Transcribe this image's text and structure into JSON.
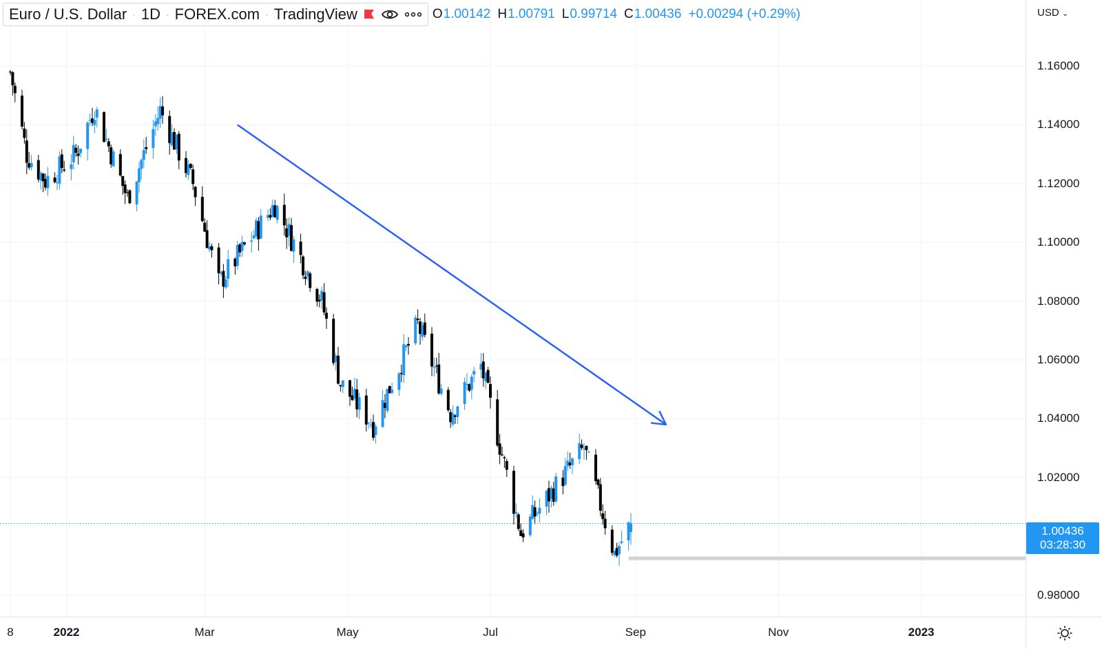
{
  "legend": {
    "symbol": "Euro / U.S. Dollar",
    "interval": "1D",
    "exchange": "FOREX.com",
    "platform": "TradingView",
    "flag_icon": "red-flag-icon",
    "visibility_icon": "eye-icon",
    "more_icon": "more-dots-icon",
    "ohlc": {
      "open_key": "O",
      "open": "1.00142",
      "high_key": "H",
      "high": "1.00791",
      "low_key": "L",
      "low": "0.99714",
      "close_key": "C",
      "close": "1.00436",
      "change": "+0.00294 (+0.29%)"
    }
  },
  "price_axis": {
    "currency": "USD",
    "labels": [
      "1.16000",
      "1.14000",
      "1.12000",
      "1.10000",
      "1.08000",
      "1.06000",
      "1.04000",
      "1.02000",
      "0.98000"
    ],
    "current_price": "1.00436",
    "countdown": "03:28:30"
  },
  "time_axis": {
    "labels": [
      {
        "text": "8",
        "bold": false
      },
      {
        "text": "2022",
        "bold": true
      },
      {
        "text": "Mar",
        "bold": false
      },
      {
        "text": "May",
        "bold": false
      },
      {
        "text": "Jul",
        "bold": false
      },
      {
        "text": "Sep",
        "bold": false
      },
      {
        "text": "Nov",
        "bold": false
      },
      {
        "text": "2023",
        "bold": true
      }
    ],
    "settings_icon": "settings-sun-icon"
  },
  "colors": {
    "up": "#2196f3",
    "down": "#000000",
    "trend_arrow": "#2962ff",
    "grid": "#f0f3fa",
    "price_line": "#2196f3"
  },
  "chart_data": {
    "type": "candlestick",
    "symbol": "Euro / U.S. Dollar",
    "interval": "1D",
    "yticks": [
      1.16,
      1.14,
      1.12,
      1.1,
      1.08,
      1.06,
      1.04,
      1.02,
      0.98
    ],
    "current_price": 1.00436,
    "trend_arrow": {
      "from": [
        "2022-03-15",
        1.14
      ],
      "to": [
        "2022-09-14",
        1.038
      ]
    },
    "anchors": [
      {
        "date": "2021-12-08",
        "close": 1.158
      },
      {
        "date": "2021-12-15",
        "close": 1.13
      },
      {
        "date": "2021-12-23",
        "close": 1.121
      },
      {
        "date": "2022-01-05",
        "close": 1.13
      },
      {
        "date": "2022-01-13",
        "close": 1.146
      },
      {
        "date": "2022-01-27",
        "close": 1.115
      },
      {
        "date": "2022-02-10",
        "close": 1.145
      },
      {
        "date": "2022-02-24",
        "close": 1.12
      },
      {
        "date": "2022-03-07",
        "close": 1.086
      },
      {
        "date": "2022-03-31",
        "close": 1.113
      },
      {
        "date": "2022-04-20",
        "close": 1.08
      },
      {
        "date": "2022-04-28",
        "close": 1.052
      },
      {
        "date": "2022-05-12",
        "close": 1.038
      },
      {
        "date": "2022-05-31",
        "close": 1.072
      },
      {
        "date": "2022-06-14",
        "close": 1.042
      },
      {
        "date": "2022-06-27",
        "close": 1.058
      },
      {
        "date": "2022-07-14",
        "close": 1.001
      },
      {
        "date": "2022-08-10",
        "close": 1.03
      },
      {
        "date": "2022-08-23",
        "close": 0.994
      },
      {
        "date": "2022-08-30",
        "close": 1.00436
      }
    ]
  }
}
